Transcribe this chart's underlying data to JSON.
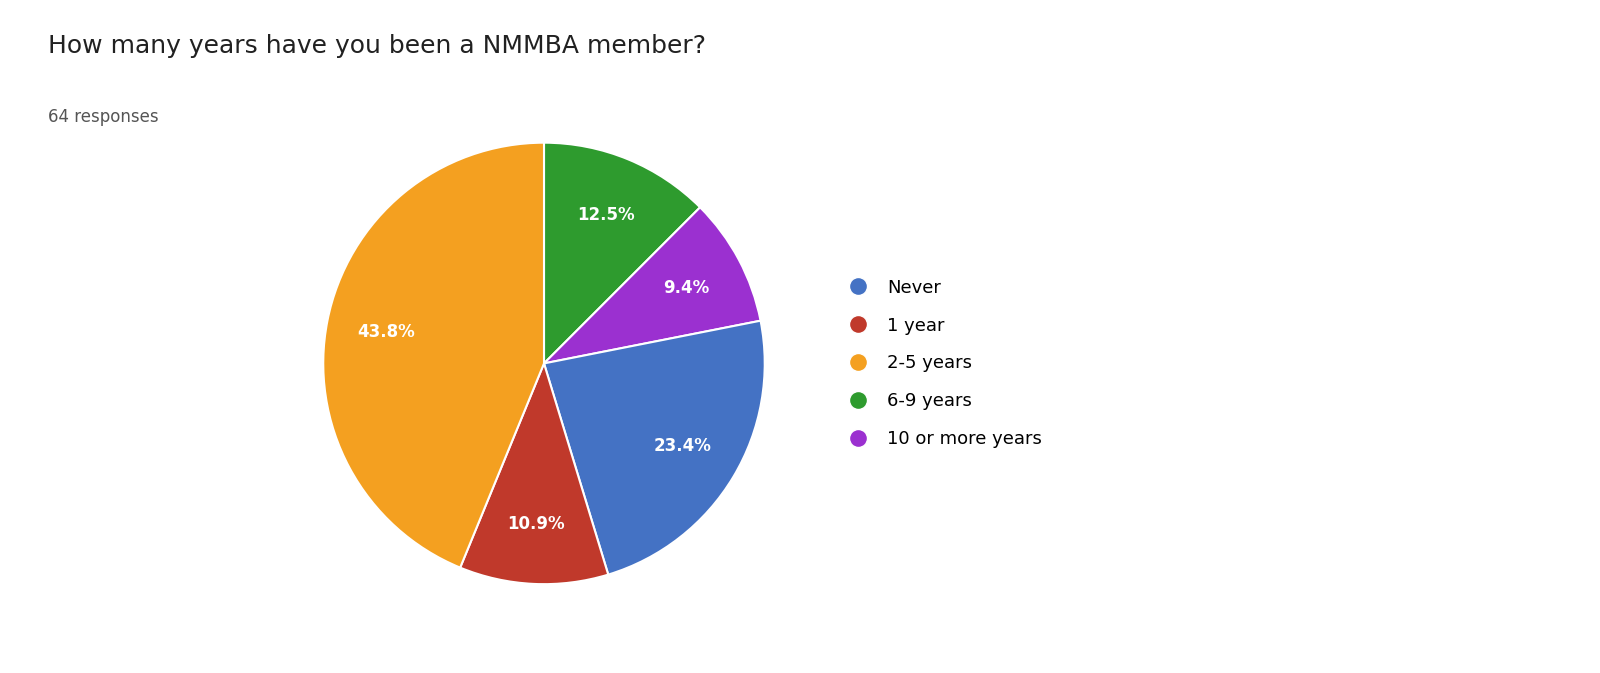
{
  "title": "How many years have you been a NMMBA member?",
  "subtitle": "64 responses",
  "labels": [
    "Never",
    "1 year",
    "2-5 years",
    "6-9 years",
    "10 or more years"
  ],
  "colors": [
    "#4472C4",
    "#C0392B",
    "#F4A020",
    "#2E9B2E",
    "#9B30D0"
  ],
  "background_color": "#ffffff",
  "title_fontsize": 18,
  "subtitle_fontsize": 12,
  "legend_fontsize": 13,
  "autopct_fontsize": 12,
  "pie_sizes": [
    12.5,
    9.4,
    23.4,
    10.9,
    43.8
  ],
  "pie_colors": [
    "#2E9B2E",
    "#9B30D0",
    "#4472C4",
    "#C0392B",
    "#F4A020"
  ],
  "pie_order_labels": [
    "6-9 years",
    "10 or more years",
    "Never",
    "1 year",
    "2-5 years"
  ]
}
